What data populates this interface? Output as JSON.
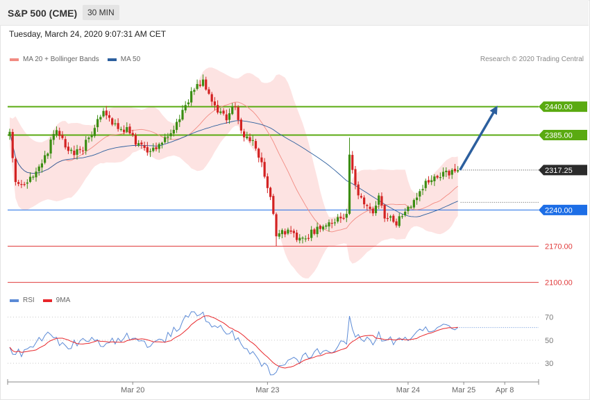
{
  "header": {
    "instrument": "S&P 500 (CME)",
    "interval": "30 MIN"
  },
  "datetime": "Tuesday, March 24, 2020 9:07:31 AM CET",
  "legend": [
    {
      "label": "MA 20 + Bollinger Bands",
      "color": "#f28b82"
    },
    {
      "label": "MA 50",
      "color": "#2c5f9e"
    }
  ],
  "credit": "Research © 2020 Trading Central",
  "rsi_legend": [
    {
      "label": "RSI",
      "color": "#5b8ad6"
    },
    {
      "label": "9MA",
      "color": "#e8262a"
    }
  ],
  "chart_data": [
    {
      "type": "candlestick",
      "title": "",
      "ylim": [
        2082,
        2512
      ],
      "bar_count": 167,
      "x_ticks": [
        {
          "label": "Mar 20",
          "index": 42
        },
        {
          "label": "Mar 23",
          "index": 88
        },
        {
          "label": "Mar 24",
          "index": 136
        },
        {
          "label": "Mar 25",
          "index": 155
        },
        {
          "label": "Apr 8",
          "index": 169
        }
      ],
      "levels": [
        {
          "value": 2440.0,
          "label": "2440.00",
          "kind": "resistance",
          "color": "#5aaa11"
        },
        {
          "value": 2385.0,
          "label": "2385.00",
          "kind": "resistance",
          "color": "#5aaa11"
        },
        {
          "value": 2317.25,
          "label": "2317.25",
          "kind": "last",
          "color": "#2b2b2b"
        },
        {
          "value": 2240.0,
          "label": "2240.00",
          "kind": "pivot",
          "color": "#1d6ee6"
        },
        {
          "value": 2170.0,
          "label": "2170.00",
          "kind": "support",
          "color": "#e03a3a"
        },
        {
          "value": 2100.0,
          "label": "2100.00",
          "kind": "support",
          "color": "#e03a3a"
        }
      ],
      "path_keypoints": [
        [
          0,
          2385
        ],
        [
          2,
          2300
        ],
        [
          6,
          2290
        ],
        [
          12,
          2340
        ],
        [
          16,
          2400
        ],
        [
          20,
          2355
        ],
        [
          24,
          2350
        ],
        [
          28,
          2390
        ],
        [
          32,
          2430
        ],
        [
          36,
          2405
        ],
        [
          40,
          2395
        ],
        [
          44,
          2365
        ],
        [
          48,
          2355
        ],
        [
          52,
          2372
        ],
        [
          56,
          2395
        ],
        [
          60,
          2440
        ],
        [
          63,
          2475
        ],
        [
          66,
          2490
        ],
        [
          68,
          2458
        ],
        [
          71,
          2430
        ],
        [
          74,
          2420
        ],
        [
          77,
          2445
        ],
        [
          79,
          2390
        ],
        [
          83,
          2375
        ],
        [
          86,
          2330
        ],
        [
          89,
          2268
        ],
        [
          91,
          2190
        ],
        [
          95,
          2200
        ],
        [
          99,
          2180
        ],
        [
          103,
          2195
        ],
        [
          108,
          2212
        ],
        [
          112,
          2220
        ],
        [
          115,
          2235
        ],
        [
          116,
          2350
        ],
        [
          118,
          2285
        ],
        [
          121,
          2255
        ],
        [
          124,
          2230
        ],
        [
          126,
          2262
        ],
        [
          128,
          2228
        ],
        [
          132,
          2215
        ],
        [
          135,
          2240
        ],
        [
          139,
          2260
        ],
        [
          142,
          2290
        ],
        [
          146,
          2302
        ],
        [
          150,
          2312
        ],
        [
          153,
          2317
        ]
      ],
      "series": [
        {
          "name": "MA 20 + Bollinger Bands",
          "color": "#f28b82"
        },
        {
          "name": "MA 50",
          "color": "#2c5f9e"
        }
      ],
      "projection": {
        "from": [
          153,
          2317.25
        ],
        "to": [
          167,
          2440.0
        ],
        "color": "#2c5f9e"
      }
    },
    {
      "type": "line",
      "title": "",
      "ylim": [
        15,
        80
      ],
      "ticks": [
        70,
        50,
        30
      ],
      "keypoints": [
        [
          0,
          42
        ],
        [
          4,
          38
        ],
        [
          8,
          45
        ],
        [
          12,
          55
        ],
        [
          16,
          50
        ],
        [
          20,
          44
        ],
        [
          24,
          50
        ],
        [
          28,
          52
        ],
        [
          32,
          46
        ],
        [
          36,
          50
        ],
        [
          40,
          54
        ],
        [
          44,
          49
        ],
        [
          48,
          46
        ],
        [
          52,
          49
        ],
        [
          56,
          58
        ],
        [
          60,
          68
        ],
        [
          63,
          73
        ],
        [
          66,
          72
        ],
        [
          69,
          64
        ],
        [
          72,
          60
        ],
        [
          75,
          58
        ],
        [
          77,
          52
        ],
        [
          80,
          42
        ],
        [
          83,
          40
        ],
        [
          86,
          30
        ],
        [
          89,
          22
        ],
        [
          92,
          26
        ],
        [
          95,
          34
        ],
        [
          98,
          31
        ],
        [
          101,
          36
        ],
        [
          105,
          40
        ],
        [
          109,
          39
        ],
        [
          113,
          47
        ],
        [
          115,
          47
        ],
        [
          116,
          71
        ],
        [
          118,
          53
        ],
        [
          121,
          50
        ],
        [
          124,
          48
        ],
        [
          126,
          54
        ],
        [
          128,
          51
        ],
        [
          132,
          49
        ],
        [
          136,
          53
        ],
        [
          140,
          60
        ],
        [
          144,
          59
        ],
        [
          148,
          64
        ],
        [
          153,
          61
        ]
      ],
      "series": [
        {
          "name": "RSI",
          "color": "#5b8ad6"
        },
        {
          "name": "9MA",
          "color": "#e8262a"
        }
      ]
    }
  ]
}
